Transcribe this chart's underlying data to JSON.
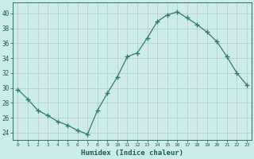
{
  "x": [
    0,
    1,
    2,
    3,
    4,
    5,
    6,
    7,
    8,
    9,
    10,
    11,
    12,
    13,
    14,
    15,
    16,
    17,
    18,
    19,
    20,
    21,
    22,
    23
  ],
  "y": [
    29.8,
    28.5,
    27.0,
    26.3,
    25.5,
    25.0,
    24.3,
    23.8,
    27.0,
    29.3,
    31.5,
    34.2,
    34.7,
    36.7,
    38.9,
    39.8,
    40.2,
    39.4,
    38.5,
    37.5,
    36.2,
    34.2,
    32.0,
    30.4
  ],
  "line_color": "#2e7d6e",
  "marker": "+",
  "marker_size": 4,
  "bg_color": "#ccecea",
  "grid_color": "#b8c8c6",
  "xlabel": "Humidex (Indice chaleur)",
  "ylabel_ticks": [
    24,
    26,
    28,
    30,
    32,
    34,
    36,
    38,
    40
  ],
  "xlim": [
    -0.5,
    23.5
  ],
  "ylim": [
    23.0,
    41.5
  ],
  "tick_color": "#1a5c5a",
  "label_color": "#1a5c5a"
}
